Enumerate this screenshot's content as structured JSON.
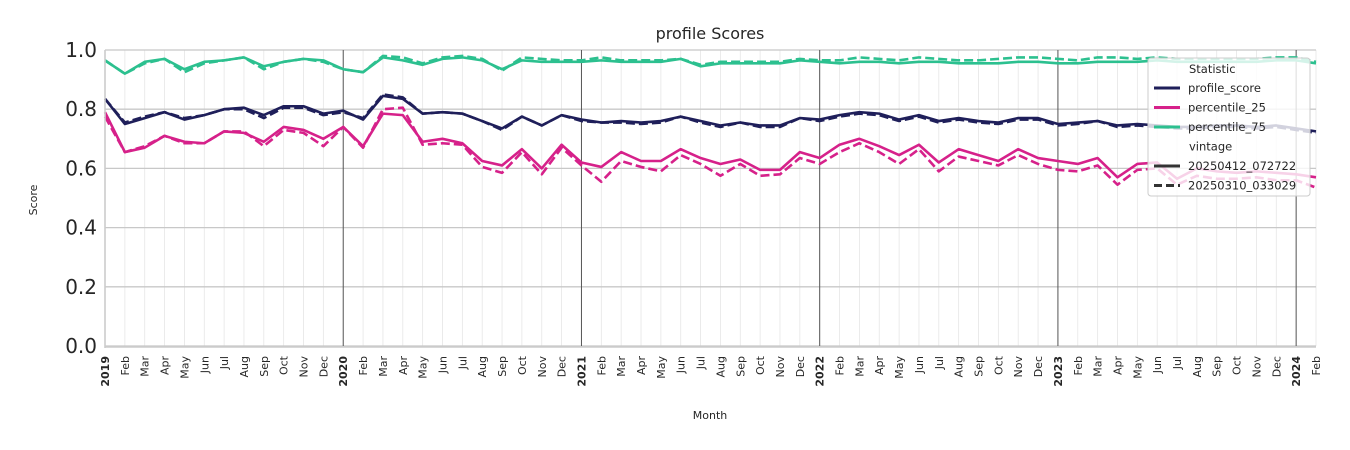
{
  "chart_data": {
    "type": "line",
    "title": "profile Scores",
    "xlabel": "Month",
    "ylabel": "Score",
    "ylim": [
      0.0,
      1.0
    ],
    "yticks": [
      "0.0",
      "0.2",
      "0.4",
      "0.6",
      "0.8",
      "1.0"
    ],
    "x_start": "2019-01",
    "x_end": "2024-02",
    "x_tick_labels": [
      "2019",
      "Feb",
      "Mar",
      "Apr",
      "May",
      "Jun",
      "Jul",
      "Aug",
      "Sep",
      "Oct",
      "Nov",
      "Dec",
      "2020",
      "Feb",
      "Mar",
      "Apr",
      "May",
      "Jun",
      "Jul",
      "Aug",
      "Sep",
      "Oct",
      "Nov",
      "Dec",
      "2021",
      "Feb",
      "Mar",
      "Apr",
      "May",
      "Jun",
      "Jul",
      "Aug",
      "Sep",
      "Oct",
      "Nov",
      "Dec",
      "2022",
      "Feb",
      "Mar",
      "Apr",
      "May",
      "Jun",
      "Jul",
      "Aug",
      "Sep",
      "Oct",
      "Nov",
      "Dec",
      "2023",
      "Feb",
      "Mar",
      "Apr",
      "May",
      "Jun",
      "Jul",
      "Aug",
      "Sep",
      "Oct",
      "Nov",
      "Dec",
      "2024",
      "Feb"
    ],
    "year_boundaries": [
      "2020",
      "2021",
      "2022",
      "2023",
      "2024"
    ],
    "grid": true,
    "legend": {
      "placement": "right",
      "statistic_title": "Statistic",
      "statistic_items": [
        {
          "label": "profile_score",
          "color": "#1f1f5a"
        },
        {
          "label": "percentile_25",
          "color": "#d6218a"
        },
        {
          "label": "percentile_75",
          "color": "#2cc08f"
        }
      ],
      "vintage_title": "vintage",
      "vintage_items": [
        {
          "label": "20250412_072722",
          "style": "solid"
        },
        {
          "label": "20250310_033029",
          "style": "dashed"
        }
      ]
    },
    "series": [
      {
        "name": "profile_score",
        "vintage": "20250412_072722",
        "color": "#1f1f5a",
        "style": "solid",
        "values": [
          0.835,
          0.75,
          0.77,
          0.79,
          0.765,
          0.78,
          0.8,
          0.805,
          0.78,
          0.81,
          0.81,
          0.785,
          0.795,
          0.765,
          0.845,
          0.835,
          0.785,
          0.79,
          0.785,
          0.76,
          0.735,
          0.775,
          0.745,
          0.78,
          0.765,
          0.755,
          0.76,
          0.755,
          0.76,
          0.775,
          0.76,
          0.745,
          0.755,
          0.745,
          0.745,
          0.77,
          0.765,
          0.78,
          0.79,
          0.785,
          0.765,
          0.78,
          0.76,
          0.77,
          0.76,
          0.755,
          0.77,
          0.77,
          0.75,
          0.755,
          0.76,
          0.745,
          0.75,
          0.745,
          0.74,
          0.74,
          0.745,
          0.745,
          0.74,
          0.745,
          0.735,
          0.725
        ]
      },
      {
        "name": "profile_score",
        "vintage": "20250310_033029",
        "color": "#1f1f5a",
        "style": "dashed",
        "values": [
          0.835,
          0.755,
          0.775,
          0.79,
          0.77,
          0.78,
          0.8,
          0.8,
          0.77,
          0.805,
          0.805,
          0.78,
          0.79,
          0.77,
          0.85,
          0.84,
          0.785,
          0.79,
          0.785,
          0.76,
          0.73,
          0.775,
          0.745,
          0.78,
          0.76,
          0.755,
          0.755,
          0.75,
          0.755,
          0.775,
          0.755,
          0.74,
          0.755,
          0.74,
          0.74,
          0.77,
          0.76,
          0.775,
          0.785,
          0.78,
          0.76,
          0.775,
          0.755,
          0.765,
          0.755,
          0.75,
          0.765,
          0.765,
          0.745,
          0.75,
          0.76,
          0.74,
          0.745,
          0.74,
          0.735,
          0.735,
          0.74,
          0.74,
          0.735,
          0.74,
          0.73,
          0.72
        ]
      },
      {
        "name": "percentile_25",
        "vintage": "20250412_072722",
        "color": "#d6218a",
        "style": "solid",
        "values": [
          0.79,
          0.655,
          0.67,
          0.71,
          0.69,
          0.685,
          0.725,
          0.72,
          0.69,
          0.74,
          0.73,
          0.7,
          0.74,
          0.675,
          0.785,
          0.78,
          0.69,
          0.7,
          0.685,
          0.625,
          0.61,
          0.665,
          0.6,
          0.68,
          0.62,
          0.605,
          0.655,
          0.625,
          0.625,
          0.665,
          0.635,
          0.615,
          0.63,
          0.595,
          0.595,
          0.655,
          0.635,
          0.68,
          0.7,
          0.675,
          0.645,
          0.68,
          0.62,
          0.665,
          0.645,
          0.625,
          0.665,
          0.635,
          0.625,
          0.615,
          0.635,
          0.57,
          0.615,
          0.62,
          0.565,
          0.6,
          0.59,
          0.585,
          0.59,
          0.585,
          0.58,
          0.57
        ]
      },
      {
        "name": "percentile_25",
        "vintage": "20250310_033029",
        "color": "#d6218a",
        "style": "dashed",
        "values": [
          0.775,
          0.655,
          0.675,
          0.71,
          0.685,
          0.685,
          0.725,
          0.725,
          0.675,
          0.73,
          0.72,
          0.675,
          0.74,
          0.67,
          0.8,
          0.805,
          0.68,
          0.685,
          0.68,
          0.605,
          0.585,
          0.655,
          0.58,
          0.67,
          0.61,
          0.555,
          0.625,
          0.605,
          0.59,
          0.645,
          0.615,
          0.575,
          0.615,
          0.575,
          0.58,
          0.635,
          0.615,
          0.655,
          0.685,
          0.655,
          0.615,
          0.665,
          0.59,
          0.64,
          0.625,
          0.61,
          0.645,
          0.615,
          0.595,
          0.59,
          0.61,
          0.545,
          0.595,
          0.6,
          0.545,
          0.575,
          0.565,
          0.565,
          0.57,
          0.56,
          0.56,
          0.535
        ]
      },
      {
        "name": "percentile_75",
        "vintage": "20250412_072722",
        "color": "#2cc08f",
        "style": "solid",
        "values": [
          0.965,
          0.92,
          0.96,
          0.97,
          0.935,
          0.96,
          0.965,
          0.975,
          0.945,
          0.96,
          0.97,
          0.965,
          0.935,
          0.925,
          0.975,
          0.965,
          0.95,
          0.97,
          0.975,
          0.965,
          0.935,
          0.965,
          0.96,
          0.96,
          0.96,
          0.965,
          0.96,
          0.96,
          0.96,
          0.97,
          0.945,
          0.955,
          0.955,
          0.955,
          0.955,
          0.965,
          0.96,
          0.955,
          0.96,
          0.96,
          0.955,
          0.96,
          0.96,
          0.955,
          0.955,
          0.955,
          0.96,
          0.96,
          0.955,
          0.955,
          0.96,
          0.96,
          0.96,
          0.965,
          0.96,
          0.96,
          0.96,
          0.96,
          0.96,
          0.965,
          0.965,
          0.955
        ]
      },
      {
        "name": "percentile_75",
        "vintage": "20250310_033029",
        "color": "#2cc08f",
        "style": "dashed",
        "values": [
          0.965,
          0.92,
          0.955,
          0.97,
          0.925,
          0.955,
          0.965,
          0.975,
          0.935,
          0.96,
          0.97,
          0.96,
          0.935,
          0.925,
          0.98,
          0.975,
          0.955,
          0.975,
          0.98,
          0.97,
          0.93,
          0.975,
          0.97,
          0.965,
          0.965,
          0.975,
          0.965,
          0.965,
          0.965,
          0.97,
          0.95,
          0.96,
          0.96,
          0.96,
          0.96,
          0.97,
          0.965,
          0.965,
          0.975,
          0.97,
          0.965,
          0.975,
          0.97,
          0.965,
          0.965,
          0.97,
          0.975,
          0.975,
          0.97,
          0.965,
          0.975,
          0.975,
          0.97,
          0.975,
          0.97,
          0.97,
          0.97,
          0.97,
          0.97,
          0.975,
          0.975,
          0.96
        ]
      }
    ]
  }
}
